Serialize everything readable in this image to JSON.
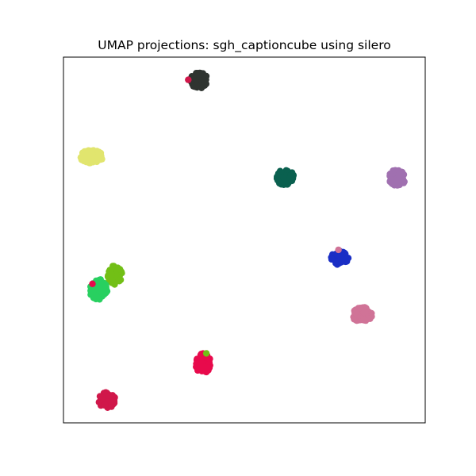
{
  "chart_data": {
    "type": "scatter",
    "title": "UMAP projections: sgh_captioncube using silero",
    "xlabel": "",
    "ylabel": "",
    "xlim": [
      0,
      100
    ],
    "ylim": [
      0,
      100
    ],
    "grid": false,
    "axis_ticks": false,
    "legend": "none",
    "series": [
      {
        "color": "#2f3430",
        "center": [
          37.5,
          93.7
        ],
        "spread": [
          2.8,
          2.6
        ],
        "count": 70
      },
      {
        "color": "#e1e56e",
        "center": [
          7.8,
          72.8
        ],
        "spread": [
          3.8,
          2.1
        ],
        "count": 70
      },
      {
        "color": "#0a604f",
        "center": [
          61.3,
          67.1
        ],
        "spread": [
          2.8,
          2.6
        ],
        "count": 70
      },
      {
        "color": "#a070b0",
        "center": [
          92.2,
          67.0
        ],
        "spread": [
          2.8,
          2.6
        ],
        "count": 70
      },
      {
        "color": "#1a2ec5",
        "center": [
          76.4,
          45.2
        ],
        "spread": [
          2.8,
          2.4
        ],
        "count": 65
      },
      {
        "color": "#72bf16",
        "center": [
          14.2,
          40.4
        ],
        "spread": [
          2.4,
          3.2
        ],
        "count": 60
      },
      {
        "color": "#28d060",
        "center": [
          9.6,
          36.5
        ],
        "spread": [
          3.0,
          3.3
        ],
        "count": 75
      },
      {
        "color": "#d07397",
        "center": [
          82.6,
          29.5
        ],
        "spread": [
          3.2,
          2.6
        ],
        "count": 65
      },
      {
        "color": "#e80a4c",
        "center": [
          38.6,
          16.3
        ],
        "spread": [
          2.6,
          3.2
        ],
        "count": 70
      },
      {
        "color": "#d0174a",
        "center": [
          12.0,
          6.2
        ],
        "spread": [
          2.8,
          2.5
        ],
        "count": 65
      }
    ],
    "outliers": [
      {
        "color": "#d0174a",
        "x": 34.5,
        "y": 93.8
      },
      {
        "color": "#d07397",
        "x": 76.0,
        "y": 47.3
      },
      {
        "color": "#72bf16",
        "x": 39.5,
        "y": 19.0
      },
      {
        "color": "#e80a4c",
        "x": 8.0,
        "y": 38.0
      }
    ]
  }
}
